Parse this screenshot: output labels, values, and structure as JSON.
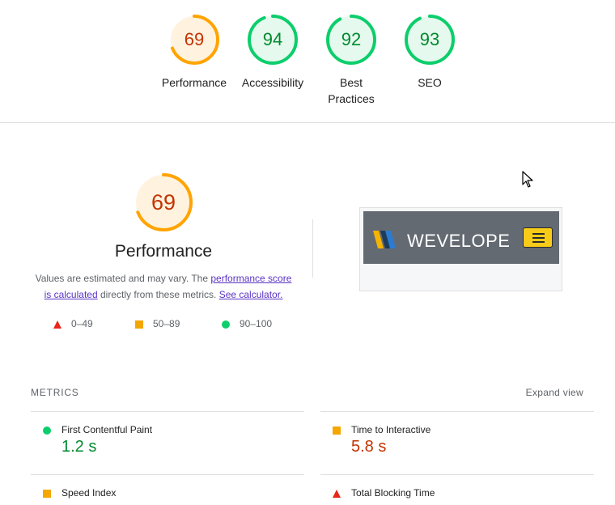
{
  "colors": {
    "pass": "#0cce6b",
    "average": "#ffa400",
    "fail": "#ff4e42",
    "pass_text": "#008a2e",
    "average_text": "#c33300",
    "link": "#5a33c4"
  },
  "gauges": [
    {
      "score": "69",
      "label": "Performance",
      "rating": "average",
      "value": 0.69
    },
    {
      "score": "94",
      "label": "Accessibility",
      "rating": "pass",
      "value": 0.94
    },
    {
      "score": "92",
      "label": "Best Practices",
      "rating": "pass",
      "value": 0.92
    },
    {
      "score": "93",
      "label": "SEO",
      "rating": "pass",
      "value": 0.93
    }
  ],
  "performance": {
    "score": "69",
    "value": 0.69,
    "title": "Performance",
    "desc_prefix": "Values are estimated and may vary. The ",
    "desc_link": "performance score is calculated",
    "desc_middle": " directly from these metrics. ",
    "desc_link2": "See calculator.",
    "legend": [
      {
        "shape": "triangle",
        "range": "0–49"
      },
      {
        "shape": "square",
        "range": "50–89"
      },
      {
        "shape": "circle",
        "range": "90–100"
      }
    ]
  },
  "screenshot": {
    "brand": "WEVELOPE",
    "menu_icon": "hamburger-icon"
  },
  "metrics": {
    "heading": "METRICS",
    "expand_label": "Expand view",
    "items": [
      {
        "label": "First Contentful Paint",
        "value": "1.2 s",
        "rating": "pass"
      },
      {
        "label": "Time to Interactive",
        "value": "5.8 s",
        "rating": "average"
      },
      {
        "label": "Speed Index",
        "value": "",
        "rating": "average"
      },
      {
        "label": "Total Blocking Time",
        "value": "",
        "rating": "fail"
      }
    ]
  }
}
